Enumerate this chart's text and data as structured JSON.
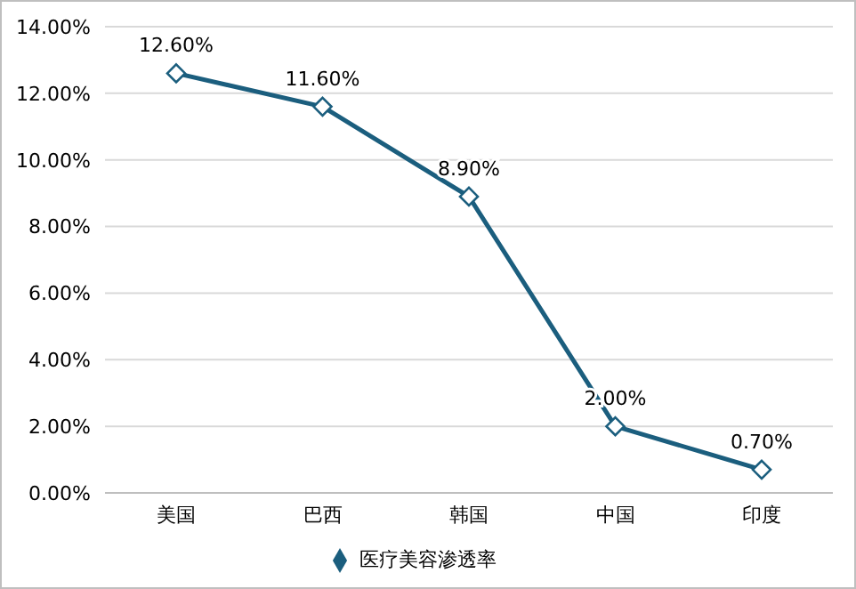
{
  "chart_data": {
    "type": "line",
    "categories": [
      "美国",
      "巴西",
      "韩国",
      "中国",
      "印度"
    ],
    "series": [
      {
        "name": "医疗美容渗透率",
        "color": "#1b5e7e",
        "values": [
          12.6,
          11.6,
          8.9,
          2.0,
          0.7
        ],
        "value_labels": [
          "12.60%",
          "11.60%",
          "8.90%",
          "2.00%",
          "0.70%"
        ]
      }
    ],
    "ylim": [
      0,
      14
    ],
    "yticks": [
      {
        "value": 0,
        "label": "0.00%"
      },
      {
        "value": 2,
        "label": "2.00%"
      },
      {
        "value": 4,
        "label": "4.00%"
      },
      {
        "value": 6,
        "label": "6.00%"
      },
      {
        "value": 8,
        "label": "8.00%"
      },
      {
        "value": 10,
        "label": "10.00%"
      },
      {
        "value": 12,
        "label": "12.00%"
      },
      {
        "value": 14,
        "label": "14.00%"
      }
    ],
    "grid": "y",
    "legend": "bottom",
    "marker": "diamond",
    "line_style": "solid"
  }
}
